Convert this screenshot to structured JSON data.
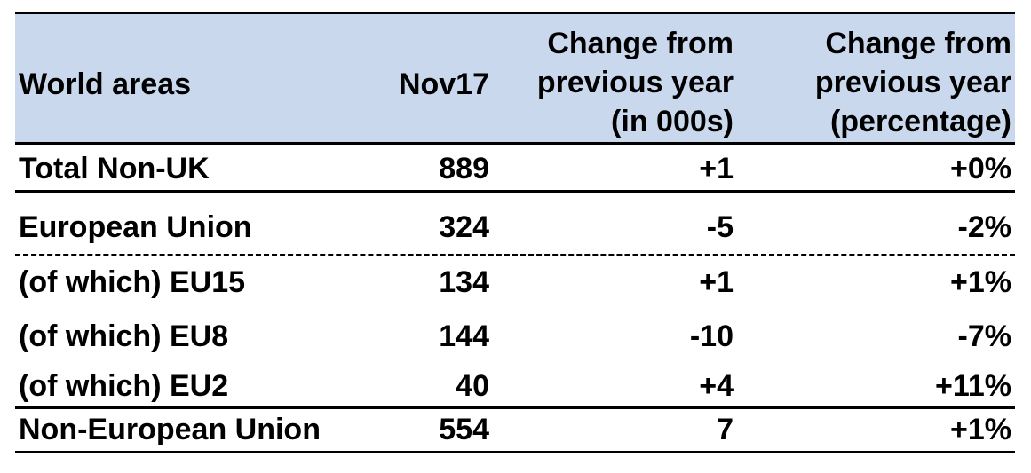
{
  "table": {
    "headers": {
      "area": "World areas",
      "nov17": "Nov17",
      "change_000s": [
        "Change from",
        "previous year",
        "(in 000s)"
      ],
      "change_pct": [
        "Change from",
        "previous year",
        "(percentage)"
      ]
    },
    "rows": [
      {
        "area": "Total Non-UK",
        "nov17": "889",
        "change_000s": "+1",
        "change_pct": "+0%"
      },
      {
        "area": "European Union",
        "nov17": "324",
        "change_000s": "-5",
        "change_pct": "-2%"
      },
      {
        "area": "(of which) EU15",
        "nov17": "134",
        "change_000s": "+1",
        "change_pct": "+1%"
      },
      {
        "area": "(of which) EU8",
        "nov17": "144",
        "change_000s": "-10",
        "change_pct": "-7%"
      },
      {
        "area": "(of which) EU2",
        "nov17": "40",
        "change_000s": "+4",
        "change_pct": "+11%"
      },
      {
        "area": "Non-European Union",
        "nov17": "554",
        "change_000s": "7",
        "change_pct": "+1%"
      }
    ]
  },
  "colors": {
    "header_background": "#c9d8ec",
    "text": "#000000",
    "rule": "#000000"
  }
}
